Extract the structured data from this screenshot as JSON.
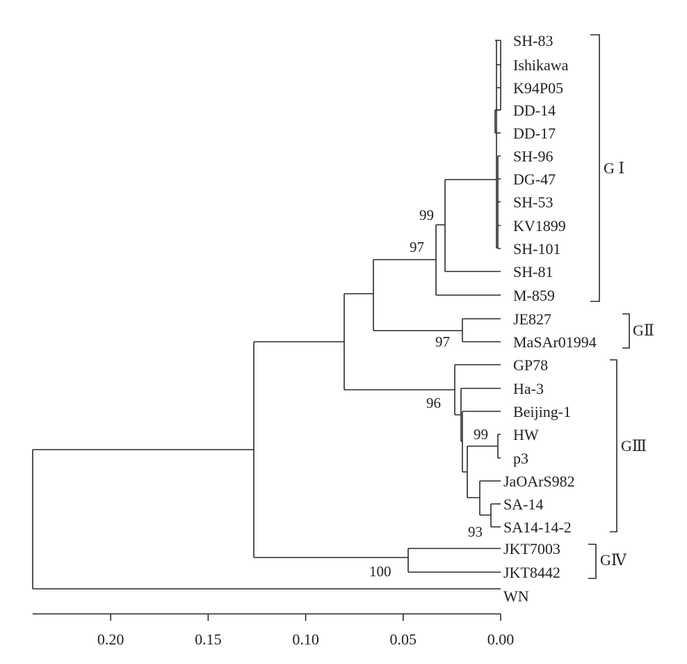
{
  "tree": {
    "taxa": [
      "SH-83",
      "Ishikawa",
      "K94P05",
      "DD-14",
      "DD-17",
      "SH-96",
      "DG-47",
      "SH-53",
      "KV1899",
      "SH-101",
      "SH-81",
      "M-859",
      "JE827",
      "MaSAr01994",
      "GP78",
      "Ha-3",
      "Beijing-1",
      "HW",
      "p3",
      "JaOArS982",
      "SA-14",
      "SA14-14-2",
      "JKT7003",
      "JKT8442",
      "WN"
    ],
    "bootstrap": [
      "99",
      "97",
      "97",
      "96",
      "99",
      "93",
      "100"
    ],
    "groups": [
      "G Ⅰ",
      "GⅡ",
      "GⅢ",
      "GⅣ"
    ]
  },
  "scale_axis": {
    "ticks": [
      "0.20",
      "0.15",
      "0.10",
      "0.05",
      "0.00"
    ],
    "tick_values": [
      0.2,
      0.15,
      0.1,
      0.05,
      0.0
    ],
    "range": [
      0.0,
      0.24
    ]
  }
}
